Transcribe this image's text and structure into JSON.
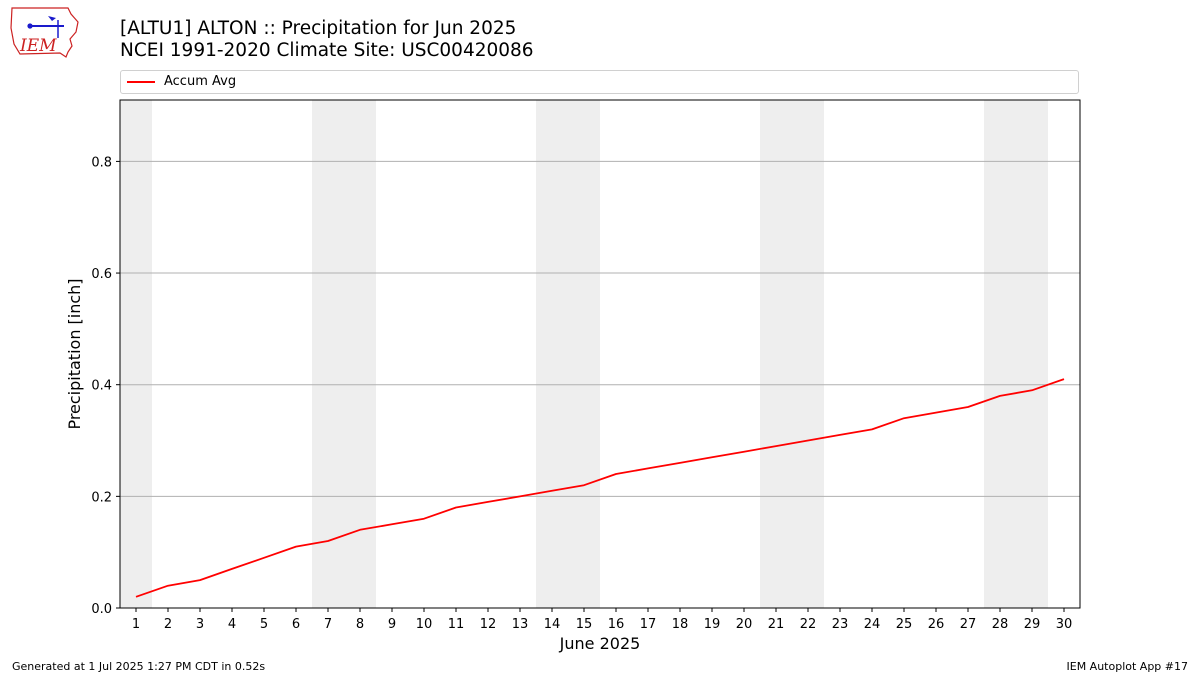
{
  "header": {
    "title_line1": "[ALTU1] ALTON :: Precipitation for Jun 2025",
    "title_line2": "NCEI 1991-2020 Climate Site: USC00420086",
    "logo_text": "IEM"
  },
  "legend": {
    "items": [
      {
        "label": "Accum Avg",
        "color": "#ff0000"
      }
    ]
  },
  "footer": {
    "generated": "Generated at 1 Jul 2025 1:27 PM CDT in 0.52s",
    "app": "IEM Autoplot App #17"
  },
  "colors": {
    "line": "#ff0000",
    "weekend_band": "#eeeeee",
    "grid": "#b0b0b0",
    "logo_red": "#cc2222",
    "logo_blue": "#1a1acc"
  },
  "chart_data": {
    "type": "line",
    "xlabel": "June 2025",
    "ylabel": "Precipitation [inch]",
    "xlim": [
      0.5,
      30.5
    ],
    "ylim": [
      0,
      0.91
    ],
    "yticks": [
      0.0,
      0.2,
      0.4,
      0.6,
      0.8
    ],
    "ytick_labels": [
      "0.0",
      "0.2",
      "0.4",
      "0.6",
      "0.8"
    ],
    "x": [
      1,
      2,
      3,
      4,
      5,
      6,
      7,
      8,
      9,
      10,
      11,
      12,
      13,
      14,
      15,
      16,
      17,
      18,
      19,
      20,
      21,
      22,
      23,
      24,
      25,
      26,
      27,
      28,
      29,
      30
    ],
    "xtick_labels": [
      "1",
      "2",
      "3",
      "4",
      "5",
      "6",
      "7",
      "8",
      "9",
      "10",
      "11",
      "12",
      "13",
      "14",
      "15",
      "16",
      "17",
      "18",
      "19",
      "20",
      "21",
      "22",
      "23",
      "24",
      "25",
      "26",
      "27",
      "28",
      "29",
      "30"
    ],
    "series": [
      {
        "name": "Accum Avg",
        "values": [
          0.02,
          0.04,
          0.05,
          0.07,
          0.09,
          0.11,
          0.12,
          0.14,
          0.15,
          0.16,
          0.18,
          0.19,
          0.2,
          0.21,
          0.22,
          0.24,
          0.25,
          0.26,
          0.27,
          0.28,
          0.29,
          0.3,
          0.31,
          0.32,
          0.34,
          0.35,
          0.36,
          0.38,
          0.39,
          0.41
        ]
      }
    ],
    "weekend_days": [
      1,
      7,
      8,
      14,
      15,
      21,
      22,
      28,
      29
    ],
    "grid": "horizontal",
    "legend_position": "top"
  }
}
